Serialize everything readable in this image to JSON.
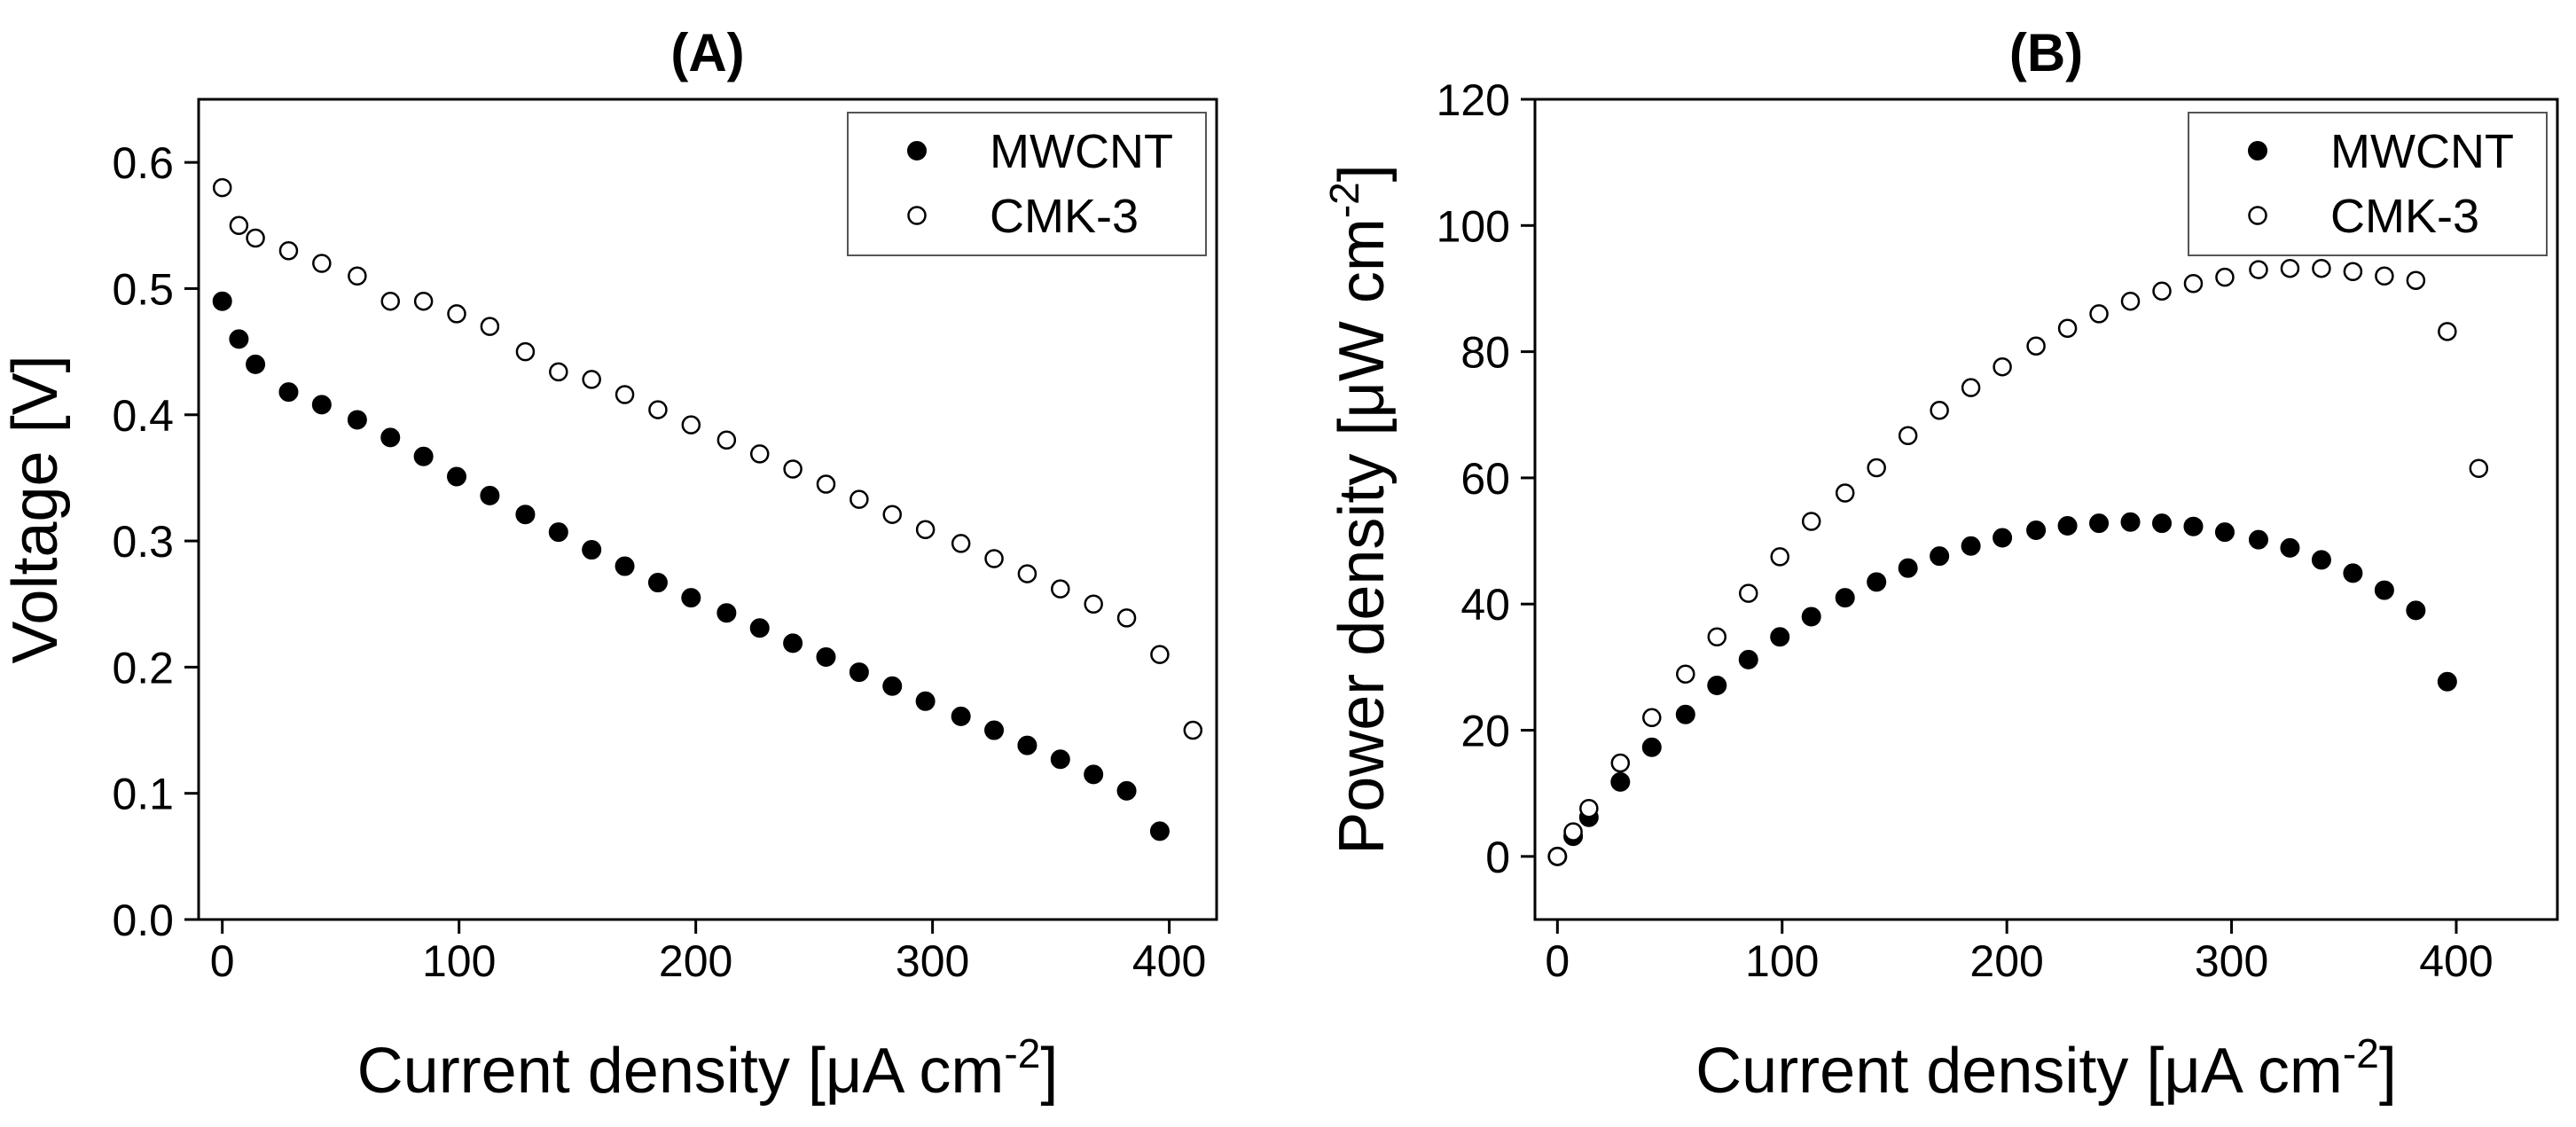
{
  "chart_data": [
    {
      "id": "A",
      "type": "scatter",
      "title": "(A)",
      "xlabel": "Current density [μA cm",
      "xlabel_sup": "-2",
      "xlabel_end": "]",
      "ylabel": "Voltage [V]",
      "xlim": [
        -10,
        420
      ],
      "ylim": [
        0,
        0.65
      ],
      "xticks": [
        0,
        100,
        200,
        300,
        400
      ],
      "yticks": [
        0.0,
        0.1,
        0.2,
        0.3,
        0.4,
        0.5,
        0.6
      ],
      "ytick_labels": [
        "0.0",
        "0.1",
        "0.2",
        "0.3",
        "0.4",
        "0.5",
        "0.6"
      ],
      "legend_position": "top-right",
      "series": [
        {
          "name": "MWCNT",
          "marker": "filled-circle",
          "x": [
            0,
            7,
            14,
            28,
            42,
            57,
            71,
            85,
            99,
            113,
            128,
            142,
            156,
            170,
            184,
            198,
            213,
            227,
            241,
            255,
            269,
            283,
            297,
            312,
            326,
            340,
            354,
            368,
            382,
            396
          ],
          "y": [
            0.49,
            0.46,
            0.44,
            0.418,
            0.408,
            0.396,
            0.382,
            0.367,
            0.351,
            0.336,
            0.321,
            0.307,
            0.293,
            0.28,
            0.267,
            0.255,
            0.243,
            0.231,
            0.219,
            0.208,
            0.196,
            0.185,
            0.173,
            0.161,
            0.15,
            0.138,
            0.127,
            0.115,
            0.102,
            0.07
          ]
        },
        {
          "name": "CMK-3",
          "marker": "open-circle",
          "x": [
            0,
            7,
            14,
            28,
            42,
            57,
            71,
            85,
            99,
            113,
            128,
            142,
            156,
            170,
            184,
            198,
            213,
            227,
            241,
            255,
            269,
            283,
            297,
            312,
            326,
            340,
            354,
            368,
            382,
            396,
            410
          ],
          "y": [
            0.58,
            0.55,
            0.54,
            0.53,
            0.52,
            0.51,
            0.49,
            0.49,
            0.48,
            0.47,
            0.45,
            0.434,
            0.428,
            0.416,
            0.404,
            0.392,
            0.38,
            0.369,
            0.357,
            0.345,
            0.333,
            0.321,
            0.309,
            0.298,
            0.286,
            0.274,
            0.262,
            0.25,
            0.239,
            0.21,
            0.15
          ]
        }
      ]
    },
    {
      "id": "B",
      "type": "scatter",
      "title": "(B)",
      "xlabel": "Current density [μA cm",
      "xlabel_sup": "-2",
      "xlabel_end": "]",
      "ylabel": "Power density [μW cm",
      "ylabel_sup": "-2",
      "ylabel_end": "]",
      "xlim": [
        -10,
        445
      ],
      "ylim": [
        -10,
        120
      ],
      "xticks": [
        0,
        100,
        200,
        300,
        400
      ],
      "yticks": [
        0,
        20,
        40,
        60,
        80,
        100,
        120
      ],
      "ytick_labels": [
        "0",
        "20",
        "40",
        "60",
        "80",
        "100",
        "120"
      ],
      "legend_position": "top-right",
      "series": [
        {
          "name": "MWCNT",
          "marker": "filled-circle",
          "x": [
            0,
            7,
            14,
            28,
            42,
            57,
            71,
            85,
            99,
            113,
            128,
            142,
            156,
            170,
            184,
            198,
            213,
            227,
            241,
            255,
            269,
            283,
            297,
            312,
            326,
            340,
            354,
            368,
            382,
            396
          ],
          "y": [
            0,
            3.2,
            6.2,
            11.8,
            17.3,
            22.5,
            27.1,
            31.2,
            34.8,
            38.0,
            41.0,
            43.5,
            45.7,
            47.6,
            49.2,
            50.5,
            51.7,
            52.4,
            52.8,
            53.0,
            52.8,
            52.3,
            51.4,
            50.2,
            48.9,
            47.0,
            44.9,
            42.2,
            39.0,
            27.7
          ]
        },
        {
          "name": "CMK-3",
          "marker": "open-circle",
          "x": [
            0,
            7,
            14,
            28,
            42,
            57,
            71,
            85,
            99,
            113,
            128,
            142,
            156,
            170,
            184,
            198,
            213,
            227,
            241,
            255,
            269,
            283,
            297,
            312,
            326,
            340,
            354,
            368,
            382,
            396,
            410
          ],
          "y": [
            0,
            3.9,
            7.6,
            14.8,
            22.0,
            28.9,
            34.8,
            41.7,
            47.5,
            53.1,
            57.6,
            61.6,
            66.7,
            70.7,
            74.3,
            77.6,
            80.9,
            83.7,
            86.0,
            88.0,
            89.6,
            90.8,
            91.8,
            93.0,
            93.2,
            93.2,
            92.7,
            92.0,
            91.3,
            83.2,
            61.5
          ]
        }
      ]
    }
  ]
}
